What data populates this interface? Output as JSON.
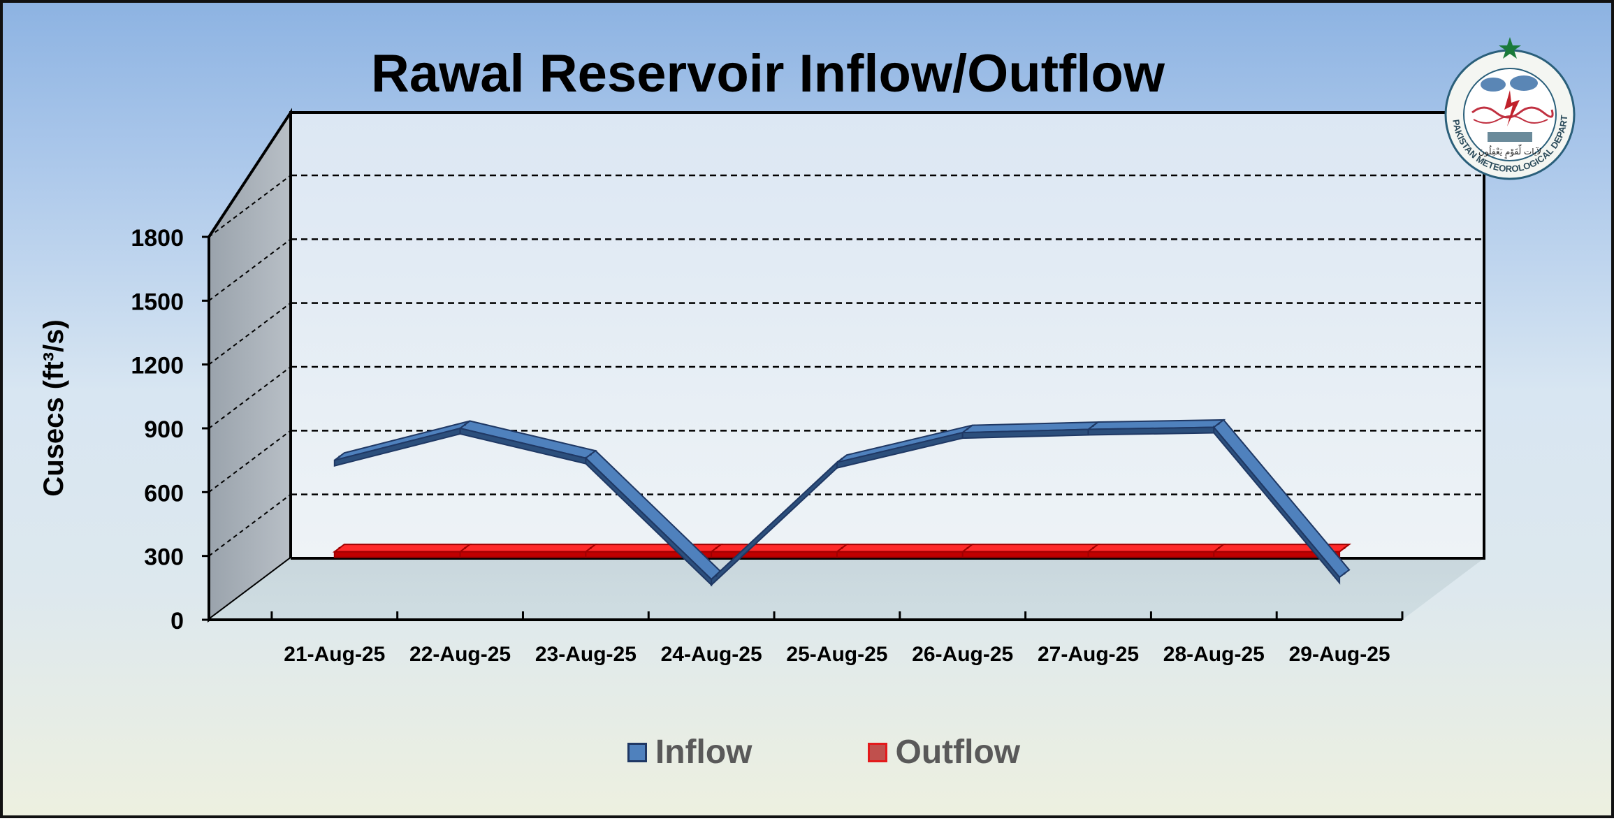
{
  "chart_data": {
    "type": "line",
    "title": "Rawal Reservoir Inflow/Outflow",
    "ylabel": "Cusecs (ft³/s)",
    "xlabel": "",
    "ylim": [
      0,
      1800
    ],
    "yticks": [
      "0",
      "300",
      "600",
      "900",
      "1200",
      "1500",
      "1800"
    ],
    "ytick_values": [
      0,
      300,
      600,
      900,
      1200,
      1500,
      1800
    ],
    "categories": [
      "21-Aug-25",
      "22-Aug-25",
      "23-Aug-25",
      "24-Aug-25",
      "25-Aug-25",
      "26-Aug-25",
      "27-Aug-25",
      "28-Aug-25",
      "29-Aug-25"
    ],
    "series": [
      {
        "name": "Inflow",
        "values": [
          750,
          900,
          760,
          190,
          740,
          880,
          895,
          905,
          200
        ],
        "color": "#4f81bd"
      },
      {
        "name": "Outflow",
        "values": [
          320,
          320,
          320,
          320,
          320,
          320,
          320,
          320,
          320
        ],
        "color": "#e31a1c"
      }
    ],
    "grid": true,
    "grid_style": "dashed",
    "legend_position": "bottom",
    "three_d": true
  },
  "logo": {
    "org_text": "PAKISTAN METEOROLOGICAL DEPARTMENT",
    "motto": "لآيات لِّقَوْمٍ يَعْقِلُونَ",
    "star_color": "#1a7a3a"
  }
}
